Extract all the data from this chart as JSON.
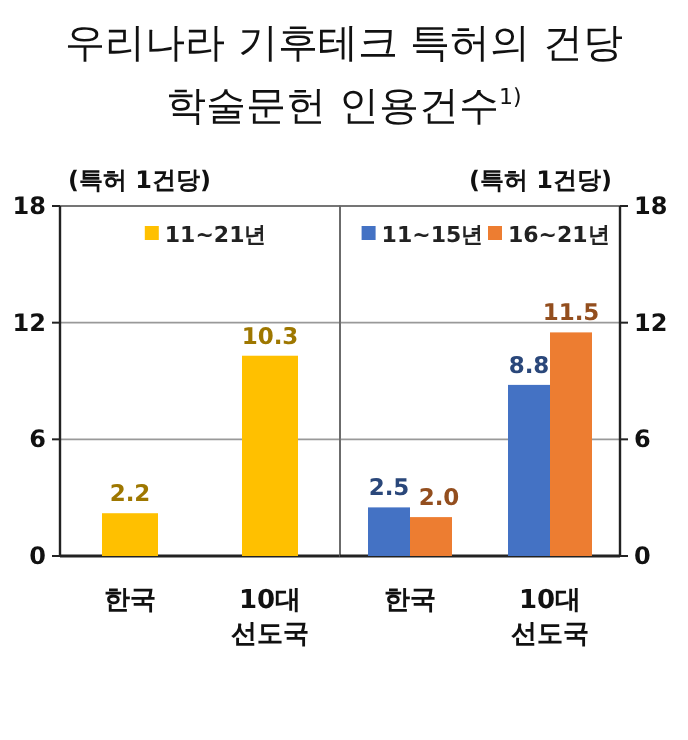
{
  "chart_data": [
    {
      "type": "bar",
      "title": "우리나라 기후테크 특허의 건당 학술문헌 인용건수$^{1)}$",
      "ylabel": "(특허 1건당)",
      "categories": [
        "한국",
        "10대 선도국"
      ],
      "ylim": [
        0,
        18
      ],
      "yticks": [
        0,
        6,
        12,
        18
      ],
      "grid": "y",
      "legend": "top",
      "series": [
        {
          "name": "11~21년",
          "color": "#ffc000",
          "values": [
            2.2,
            10.3
          ],
          "value_labels": [
            "2.2",
            "10.3"
          ]
        }
      ]
    },
    {
      "type": "bar",
      "y2label": "(특허 1건당)",
      "categories": [
        "한국",
        "10대 선도국"
      ],
      "y2lim": [
        0,
        18
      ],
      "y2ticks": [
        0,
        6,
        12,
        18
      ],
      "grid": "y",
      "legend": "top",
      "series": [
        {
          "name": "11~15년",
          "color": "#4472c4",
          "axis": "y2",
          "values": [
            2.5,
            8.8
          ],
          "value_labels": [
            "2.5",
            "8.8"
          ]
        },
        {
          "name": "16~21년",
          "color": "#ed7d31",
          "axis": "y2",
          "values": [
            2.0,
            11.5
          ],
          "value_labels": [
            "2.0",
            "11.5"
          ]
        }
      ]
    }
  ]
}
